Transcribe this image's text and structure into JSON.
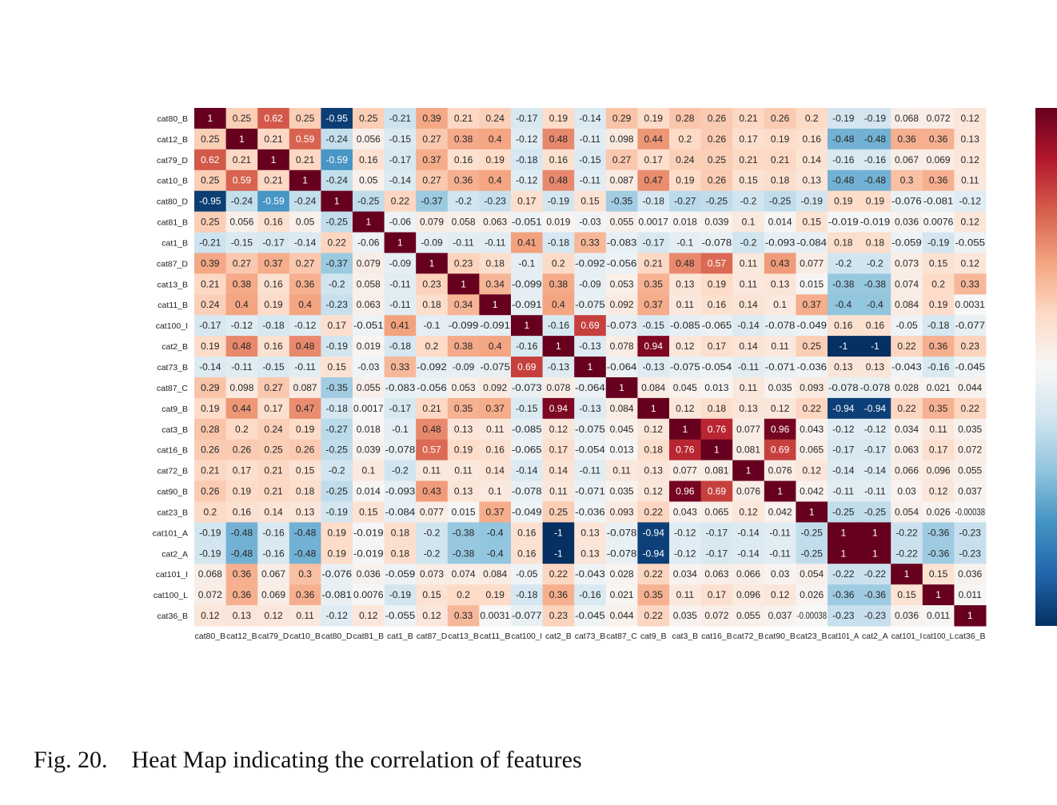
{
  "caption": "Fig. 20.    Heat Map indicating the correlation of features",
  "chart_data": {
    "type": "heatmap",
    "title": "",
    "colormap": "RdBu_r",
    "vmin": -1,
    "vmax": 1,
    "colorbar": true,
    "row_labels": [
      "cat80_B",
      "cat12_B",
      "cat79_D",
      "cat10_B",
      "cat80_D",
      "cat81_B",
      "cat1_B",
      "cat87_D",
      "cat13_B",
      "cat11_B",
      "cat100_I",
      "cat2_B",
      "cat73_B",
      "cat87_C",
      "cat9_B",
      "cat3_B",
      "cat16_B",
      "cat72_B",
      "cat90_B",
      "cat23_B",
      "cat101_A",
      "cat2_A",
      "cat101_I",
      "cat100_L",
      "cat36_B"
    ],
    "col_labels": [
      "cat80_B",
      "cat12_B",
      "cat79_D",
      "cat10_B",
      "cat80_D",
      "cat81_B",
      "cat1_B",
      "cat87_D",
      "cat13_B",
      "cat11_B",
      "cat100_I",
      "cat2_B",
      "cat73_B",
      "cat87_C",
      "cat9_B",
      "cat3_B",
      "cat16_B",
      "cat72_B",
      "cat90_B",
      "cat23_B",
      "cat101_A",
      "cat2_A",
      "cat101_I",
      "cat100_L",
      "cat36_B"
    ],
    "values": [
      [
        "1",
        "0.25",
        "0.62",
        "0.25",
        "-0.95",
        "0.25",
        "-0.21",
        "0.39",
        "0.21",
        "0.24",
        "-0.17",
        "0.19",
        "-0.14",
        "0.29",
        "0.19",
        "0.28",
        "0.26",
        "0.21",
        "0.26",
        "0.2",
        "-0.19",
        "-0.19",
        "0.068",
        "0.072",
        "0.12"
      ],
      [
        "0.25",
        "1",
        "0.21",
        "0.59",
        "-0.24",
        "0.056",
        "-0.15",
        "0.27",
        "0.38",
        "0.4",
        "-0.12",
        "0.48",
        "-0.11",
        "0.098",
        "0.44",
        "0.2",
        "0.26",
        "0.17",
        "0.19",
        "0.16",
        "-0.48",
        "-0.48",
        "0.36",
        "0.36",
        "0.13"
      ],
      [
        "0.62",
        "0.21",
        "1",
        "0.21",
        "-0.59",
        "0.16",
        "-0.17",
        "0.37",
        "0.16",
        "0.19",
        "-0.18",
        "0.16",
        "-0.15",
        "0.27",
        "0.17",
        "0.24",
        "0.25",
        "0.21",
        "0.21",
        "0.14",
        "-0.16",
        "-0.16",
        "0.067",
        "0.069",
        "0.12"
      ],
      [
        "0.25",
        "0.59",
        "0.21",
        "1",
        "-0.24",
        "0.05",
        "-0.14",
        "0.27",
        "0.36",
        "0.4",
        "-0.12",
        "0.48",
        "-0.11",
        "0.087",
        "0.47",
        "0.19",
        "0.26",
        "0.15",
        "0.18",
        "0.13",
        "-0.48",
        "-0.48",
        "0.3",
        "0.36",
        "0.11"
      ],
      [
        "-0.95",
        "-0.24",
        "-0.59",
        "-0.24",
        "1",
        "-0.25",
        "0.22",
        "-0.37",
        "-0.2",
        "-0.23",
        "0.17",
        "-0.19",
        "0.15",
        "-0.35",
        "-0.18",
        "-0.27",
        "-0.25",
        "-0.2",
        "-0.25",
        "-0.19",
        "0.19",
        "0.19",
        "-0.076",
        "-0.081",
        "-0.12"
      ],
      [
        "0.25",
        "0.056",
        "0.16",
        "0.05",
        "-0.25",
        "1",
        "-0.06",
        "0.079",
        "0.058",
        "0.063",
        "-0.051",
        "0.019",
        "-0.03",
        "0.055",
        "0.0017",
        "0.018",
        "0.039",
        "0.1",
        "0.014",
        "0.15",
        "-0.019",
        "-0.019",
        "0.036",
        "0.0076",
        "0.12"
      ],
      [
        "-0.21",
        "-0.15",
        "-0.17",
        "-0.14",
        "0.22",
        "-0.06",
        "1",
        "-0.09",
        "-0.11",
        "-0.11",
        "0.41",
        "-0.18",
        "0.33",
        "-0.083",
        "-0.17",
        "-0.1",
        "-0.078",
        "-0.2",
        "-0.093",
        "-0.084",
        "0.18",
        "0.18",
        "-0.059",
        "-0.19",
        "-0.055"
      ],
      [
        "0.39",
        "0.27",
        "0.37",
        "0.27",
        "-0.37",
        "0.079",
        "-0.09",
        "1",
        "0.23",
        "0.18",
        "-0.1",
        "0.2",
        "-0.092",
        "-0.056",
        "0.21",
        "0.48",
        "0.57",
        "0.11",
        "0.43",
        "0.077",
        "-0.2",
        "-0.2",
        "0.073",
        "0.15",
        "0.12"
      ],
      [
        "0.21",
        "0.38",
        "0.16",
        "0.36",
        "-0.2",
        "0.058",
        "-0.11",
        "0.23",
        "1",
        "0.34",
        "-0.099",
        "0.38",
        "-0.09",
        "0.053",
        "0.35",
        "0.13",
        "0.19",
        "0.11",
        "0.13",
        "0.015",
        "-0.38",
        "-0.38",
        "0.074",
        "0.2",
        "0.33"
      ],
      [
        "0.24",
        "0.4",
        "0.19",
        "0.4",
        "-0.23",
        "0.063",
        "-0.11",
        "0.18",
        "0.34",
        "1",
        "-0.091",
        "0.4",
        "-0.075",
        "0.092",
        "0.37",
        "0.11",
        "0.16",
        "0.14",
        "0.1",
        "0.37",
        "-0.4",
        "-0.4",
        "0.084",
        "0.19",
        "0.0031"
      ],
      [
        "-0.17",
        "-0.12",
        "-0.18",
        "-0.12",
        "0.17",
        "-0.051",
        "0.41",
        "-0.1",
        "-0.099",
        "-0.091",
        "1",
        "-0.16",
        "0.69",
        "-0.073",
        "-0.15",
        "-0.085",
        "-0.065",
        "-0.14",
        "-0.078",
        "-0.049",
        "0.16",
        "0.16",
        "-0.05",
        "-0.18",
        "-0.077"
      ],
      [
        "0.19",
        "0.48",
        "0.16",
        "0.48",
        "-0.19",
        "0.019",
        "-0.18",
        "0.2",
        "0.38",
        "0.4",
        "-0.16",
        "1",
        "-0.13",
        "0.078",
        "0.94",
        "0.12",
        "0.17",
        "0.14",
        "0.11",
        "0.25",
        "-1",
        "-1",
        "0.22",
        "0.36",
        "0.23"
      ],
      [
        "-0.14",
        "-0.11",
        "-0.15",
        "-0.11",
        "0.15",
        "-0.03",
        "0.33",
        "-0.092",
        "-0.09",
        "-0.075",
        "0.69",
        "-0.13",
        "1",
        "-0.064",
        "-0.13",
        "-0.075",
        "-0.054",
        "-0.11",
        "-0.071",
        "-0.036",
        "0.13",
        "0.13",
        "-0.043",
        "-0.16",
        "-0.045"
      ],
      [
        "0.29",
        "0.098",
        "0.27",
        "0.087",
        "-0.35",
        "0.055",
        "-0.083",
        "-0.056",
        "0.053",
        "0.092",
        "-0.073",
        "0.078",
        "-0.064",
        "1",
        "0.084",
        "0.045",
        "0.013",
        "0.11",
        "0.035",
        "0.093",
        "-0.078",
        "-0.078",
        "0.028",
        "0.021",
        "0.044"
      ],
      [
        "0.19",
        "0.44",
        "0.17",
        "0.47",
        "-0.18",
        "0.0017",
        "-0.17",
        "0.21",
        "0.35",
        "0.37",
        "-0.15",
        "0.94",
        "-0.13",
        "0.084",
        "1",
        "0.12",
        "0.18",
        "0.13",
        "0.12",
        "0.22",
        "-0.94",
        "-0.94",
        "0.22",
        "0.35",
        "0.22"
      ],
      [
        "0.28",
        "0.2",
        "0.24",
        "0.19",
        "-0.27",
        "0.018",
        "-0.1",
        "0.48",
        "0.13",
        "0.11",
        "-0.085",
        "0.12",
        "-0.075",
        "0.045",
        "0.12",
        "1",
        "0.76",
        "0.077",
        "0.96",
        "0.043",
        "-0.12",
        "-0.12",
        "0.034",
        "0.11",
        "0.035"
      ],
      [
        "0.26",
        "0.26",
        "0.25",
        "0.26",
        "-0.25",
        "0.039",
        "-0.078",
        "0.57",
        "0.19",
        "0.16",
        "-0.065",
        "0.17",
        "-0.054",
        "0.013",
        "0.18",
        "0.76",
        "1",
        "0.081",
        "0.69",
        "0.065",
        "-0.17",
        "-0.17",
        "0.063",
        "0.17",
        "0.072"
      ],
      [
        "0.21",
        "0.17",
        "0.21",
        "0.15",
        "-0.2",
        "0.1",
        "-0.2",
        "0.11",
        "0.11",
        "0.14",
        "-0.14",
        "0.14",
        "-0.11",
        "0.11",
        "0.13",
        "0.077",
        "0.081",
        "1",
        "0.076",
        "0.12",
        "-0.14",
        "-0.14",
        "0.066",
        "0.096",
        "0.055"
      ],
      [
        "0.26",
        "0.19",
        "0.21",
        "0.18",
        "-0.25",
        "0.014",
        "-0.093",
        "0.43",
        "0.13",
        "0.1",
        "-0.078",
        "0.11",
        "-0.071",
        "0.035",
        "0.12",
        "0.96",
        "0.69",
        "0.076",
        "1",
        "0.042",
        "-0.11",
        "-0.11",
        "0.03",
        "0.12",
        "0.037"
      ],
      [
        "0.2",
        "0.16",
        "0.14",
        "0.13",
        "-0.19",
        "0.15",
        "-0.084",
        "0.077",
        "0.015",
        "0.37",
        "-0.049",
        "0.25",
        "-0.036",
        "0.093",
        "0.22",
        "0.043",
        "0.065",
        "0.12",
        "0.042",
        "1",
        "-0.25",
        "-0.25",
        "0.054",
        "0.026",
        "-0.00038"
      ],
      [
        "-0.19",
        "-0.48",
        "-0.16",
        "-0.48",
        "0.19",
        "-0.019",
        "0.18",
        "-0.2",
        "-0.38",
        "-0.4",
        "0.16",
        "-1",
        "0.13",
        "-0.078",
        "-0.94",
        "-0.12",
        "-0.17",
        "-0.14",
        "-0.11",
        "-0.25",
        "1",
        "1",
        "-0.22",
        "-0.36",
        "-0.23"
      ],
      [
        "-0.19",
        "-0.48",
        "-0.16",
        "-0.48",
        "0.19",
        "-0.019",
        "0.18",
        "-0.2",
        "-0.38",
        "-0.4",
        "0.16",
        "-1",
        "0.13",
        "-0.078",
        "-0.94",
        "-0.12",
        "-0.17",
        "-0.14",
        "-0.11",
        "-0.25",
        "1",
        "1",
        "-0.22",
        "-0.36",
        "-0.23"
      ],
      [
        "0.068",
        "0.36",
        "0.067",
        "0.3",
        "-0.076",
        "0.036",
        "-0.059",
        "0.073",
        "0.074",
        "0.084",
        "-0.05",
        "0.22",
        "-0.043",
        "0.028",
        "0.22",
        "0.034",
        "0.063",
        "0.066",
        "0.03",
        "0.054",
        "-0.22",
        "-0.22",
        "1",
        "0.15",
        "0.036"
      ],
      [
        "0.072",
        "0.36",
        "0.069",
        "0.36",
        "-0.081",
        "0.0076",
        "-0.19",
        "0.15",
        "0.2",
        "0.19",
        "-0.18",
        "0.36",
        "-0.16",
        "0.021",
        "0.35",
        "0.11",
        "0.17",
        "0.096",
        "0.12",
        "0.026",
        "-0.36",
        "-0.36",
        "0.15",
        "1",
        "0.011"
      ],
      [
        "0.12",
        "0.13",
        "0.12",
        "0.11",
        "-0.12",
        "0.12",
        "-0.055",
        "0.12",
        "0.33",
        "0.0031",
        "-0.077",
        "0.23",
        "-0.045",
        "0.044",
        "0.22",
        "0.035",
        "0.072",
        "0.055",
        "0.037",
        "-0.00038",
        "-0.23",
        "-0.23",
        "0.036",
        "0.011",
        "1"
      ]
    ]
  }
}
